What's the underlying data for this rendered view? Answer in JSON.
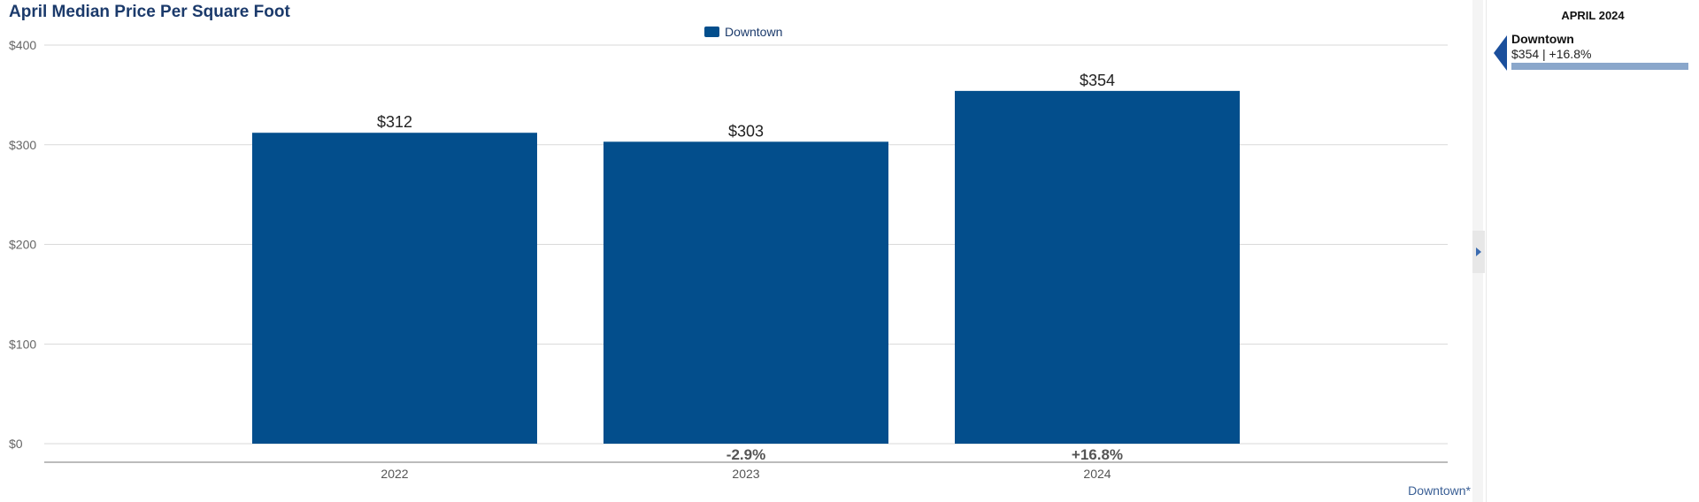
{
  "chart_data": {
    "type": "bar",
    "title": "April Median Price Per Square Foot",
    "categories": [
      "2022",
      "2023",
      "2024"
    ],
    "series": [
      {
        "name": "Downtown",
        "values": [
          312,
          303,
          354
        ]
      }
    ],
    "value_labels": [
      "$312",
      "$303",
      "$354"
    ],
    "change_labels": [
      "",
      "-2.9%",
      "+16.8%"
    ],
    "ylim": [
      0,
      400
    ],
    "yticks": [
      0,
      100,
      200,
      300,
      400
    ],
    "ytick_labels": [
      "$0",
      "$100",
      "$200",
      "$300",
      "$400"
    ],
    "xlabel": "",
    "ylabel": "",
    "grid": true,
    "legend_position": "top-center",
    "bar_color": "#034e8c"
  },
  "legend": {
    "label": "Downtown"
  },
  "footer": {
    "link": "Downtown*"
  },
  "side_panel": {
    "header": "APRIL 2024",
    "name": "Downtown",
    "stats": "$354 | +16.8%",
    "bar_fraction": 1.0,
    "bar_color": "#8aa7cb"
  },
  "colors": {
    "title": "#1b3a6b",
    "bar": "#034e8c",
    "pointer": "#1b4f9c"
  }
}
